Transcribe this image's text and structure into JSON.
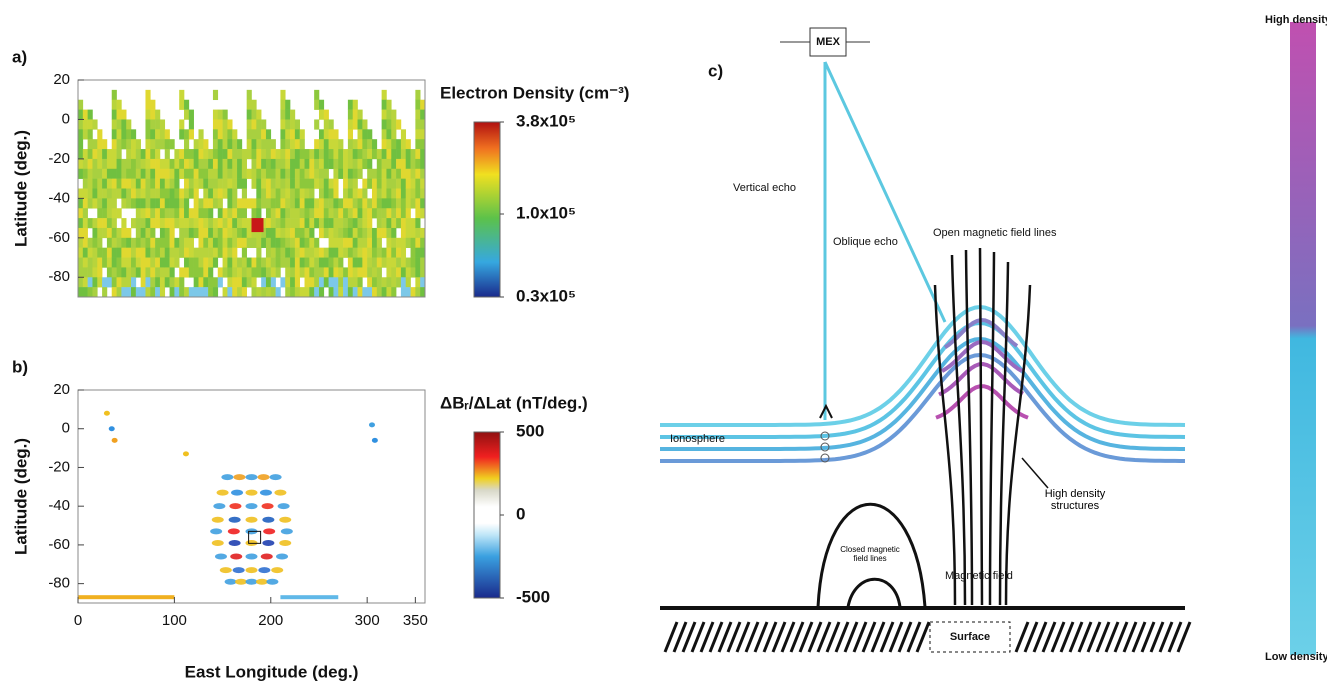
{
  "panels": [
    {
      "label": "a)",
      "ylabel": "Latitude (deg.)",
      "ylim": [
        -90,
        20
      ],
      "yticks": [
        20,
        0,
        -20,
        -40,
        -60,
        -80
      ],
      "xlim": [
        0,
        360
      ],
      "colorbar": {
        "title": "Electron Density (cm⁻³)",
        "log": true,
        "lim": [
          30000,
          380000
        ],
        "ticks": [
          {
            "value": 380000,
            "label": "3.8x10⁵"
          },
          {
            "value": 100000,
            "label": "1.0x10⁵"
          },
          {
            "value": 30000,
            "label": "0.3x10⁵"
          }
        ]
      }
    },
    {
      "label": "b)",
      "ylabel": "Latitude (deg.)",
      "ylim": [
        -90,
        20
      ],
      "yticks": [
        20,
        0,
        -20,
        -40,
        -60,
        -80
      ],
      "xlim": [
        0,
        360
      ],
      "xticks": [
        0,
        100,
        200,
        300,
        350
      ],
      "xlabel": "East Longitude (deg.)",
      "colorbar": {
        "title": "ΔBᵣ/ΔLat (nT/deg.)",
        "log": false,
        "lim": [
          -500,
          500
        ],
        "ticks": [
          500,
          0,
          -500
        ]
      }
    }
  ],
  "diagram": {
    "label": "c)",
    "spacecraft": "MEX",
    "vertical_echo": "Vertical echo",
    "oblique_echo": "Oblique echo",
    "open_field": "Open magnetic field lines",
    "ionosphere": "Ionosphere",
    "high_density_structures": "High density structures",
    "closed_field": "Closed magnetic field lines",
    "magnetic_field": "Magnetic field",
    "surface": "Surface",
    "scale_top": "High density",
    "scale_bottom": "Low density"
  }
}
